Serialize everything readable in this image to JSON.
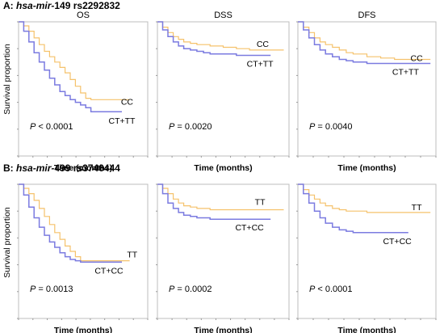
{
  "sections": [
    {
      "letter": "A:",
      "gene": "hsa-mir-",
      "gene_num": "149",
      "snp": "rs2292832"
    },
    {
      "letter": "B:",
      "gene": "hsa-mir-",
      "gene_num": "499",
      "snp": "rs3746444"
    }
  ],
  "y_label": "Survival  proportion",
  "x_label": "Time (months)",
  "colors": {
    "group_ref": "#f5c26b",
    "group_alt": "#7b7be0"
  },
  "chart_data": [
    {
      "type": "line",
      "row": 0,
      "col": 0,
      "title": "OS",
      "p_symbol": "P",
      "p_text": " < 0.0001",
      "xlim": [
        0,
        10
      ],
      "ylim": [
        0,
        1
      ],
      "series": [
        {
          "name": "CC",
          "color": "#f5c26b",
          "x": [
            0,
            0.4,
            0.8,
            1.2,
            1.6,
            2.0,
            2.4,
            2.8,
            3.2,
            3.6,
            4.0,
            4.4,
            4.8,
            5.2,
            5.6,
            6.0,
            7.0,
            8.0,
            8.6
          ],
          "y": [
            1.0,
            0.97,
            0.93,
            0.88,
            0.83,
            0.78,
            0.74,
            0.7,
            0.66,
            0.62,
            0.57,
            0.52,
            0.47,
            0.43,
            0.42,
            0.42,
            0.42,
            0.42,
            0.42
          ]
        },
        {
          "name": "CT+TT",
          "color": "#7b7be0",
          "x": [
            0,
            0.4,
            0.8,
            1.2,
            1.6,
            2.0,
            2.4,
            2.8,
            3.2,
            3.6,
            4.0,
            4.4,
            4.8,
            5.2,
            5.6,
            6.0,
            7.0,
            8.0
          ],
          "y": [
            1.0,
            0.93,
            0.85,
            0.77,
            0.7,
            0.64,
            0.58,
            0.53,
            0.48,
            0.45,
            0.42,
            0.4,
            0.38,
            0.36,
            0.33,
            0.33,
            0.33,
            0.33
          ]
        }
      ]
    },
    {
      "type": "line",
      "row": 0,
      "col": 1,
      "title": "DSS",
      "p_symbol": "P",
      "p_text": " = 0.0020",
      "xlim": [
        0,
        10
      ],
      "ylim": [
        0,
        1
      ],
      "series": [
        {
          "name": "CC",
          "color": "#f5c26b",
          "x": [
            0,
            0.4,
            0.8,
            1.2,
            1.6,
            2.0,
            2.5,
            3.0,
            3.5,
            4.0,
            5.0,
            6.0,
            7.0,
            8.0,
            9.0,
            9.6
          ],
          "y": [
            1.0,
            0.96,
            0.92,
            0.89,
            0.87,
            0.85,
            0.84,
            0.83,
            0.83,
            0.82,
            0.81,
            0.8,
            0.79,
            0.79,
            0.79,
            0.79
          ]
        },
        {
          "name": "CT+TT",
          "color": "#7b7be0",
          "x": [
            0,
            0.4,
            0.8,
            1.2,
            1.6,
            2.0,
            2.5,
            3.0,
            3.5,
            4.0,
            5.0,
            6.0,
            7.0,
            8.0,
            8.6
          ],
          "y": [
            1.0,
            0.94,
            0.89,
            0.85,
            0.82,
            0.8,
            0.79,
            0.78,
            0.77,
            0.76,
            0.76,
            0.75,
            0.75,
            0.75,
            0.75
          ]
        }
      ]
    },
    {
      "type": "line",
      "row": 0,
      "col": 2,
      "title": "DFS",
      "p_symbol": "P",
      "p_text": " = 0.0040",
      "xlim": [
        0,
        10
      ],
      "ylim": [
        0,
        1
      ],
      "series": [
        {
          "name": "CC",
          "color": "#f5c26b",
          "x": [
            0,
            0.4,
            0.8,
            1.2,
            1.6,
            2.0,
            2.5,
            3.0,
            3.5,
            4.0,
            5.0,
            6.0,
            7.0,
            8.0,
            9.0,
            9.6
          ],
          "y": [
            1.0,
            0.96,
            0.92,
            0.88,
            0.85,
            0.83,
            0.81,
            0.79,
            0.77,
            0.76,
            0.74,
            0.73,
            0.72,
            0.72,
            0.72,
            0.72
          ]
        },
        {
          "name": "CT+TT",
          "color": "#7b7be0",
          "x": [
            0,
            0.4,
            0.8,
            1.2,
            1.6,
            2.0,
            2.5,
            3.0,
            3.5,
            4.0,
            5.0,
            6.0,
            7.0,
            8.0,
            9.0,
            9.6
          ],
          "y": [
            1.0,
            0.94,
            0.88,
            0.83,
            0.79,
            0.76,
            0.74,
            0.72,
            0.71,
            0.7,
            0.69,
            0.69,
            0.69,
            0.69,
            0.69,
            0.69
          ]
        }
      ]
    },
    {
      "type": "line",
      "row": 1,
      "col": 0,
      "title": "",
      "p_symbol": "P",
      "p_text": " = 0.0013",
      "xlim": [
        0,
        10
      ],
      "ylim": [
        0,
        1
      ],
      "series": [
        {
          "name": "TT",
          "color": "#f5c26b",
          "x": [
            0,
            0.4,
            0.8,
            1.2,
            1.6,
            2.0,
            2.4,
            2.8,
            3.2,
            3.6,
            4.0,
            4.4,
            4.8,
            5.2,
            6.0,
            7.0,
            8.0,
            8.6
          ],
          "y": [
            1.0,
            0.97,
            0.93,
            0.88,
            0.82,
            0.76,
            0.7,
            0.64,
            0.59,
            0.54,
            0.5,
            0.46,
            0.43,
            0.43,
            0.43,
            0.43,
            0.43,
            0.43
          ]
        },
        {
          "name": "CT+CC",
          "color": "#7b7be0",
          "x": [
            0,
            0.4,
            0.8,
            1.2,
            1.6,
            2.0,
            2.4,
            2.8,
            3.2,
            3.6,
            4.0,
            4.4,
            4.8,
            5.2,
            6.0,
            7.0,
            8.0
          ],
          "y": [
            1.0,
            0.92,
            0.83,
            0.75,
            0.68,
            0.62,
            0.57,
            0.53,
            0.49,
            0.46,
            0.44,
            0.43,
            0.42,
            0.42,
            0.42,
            0.42,
            0.42
          ]
        }
      ]
    },
    {
      "type": "line",
      "row": 1,
      "col": 1,
      "title": "",
      "p_symbol": "P",
      "p_text": " = 0.0002",
      "xlim": [
        0,
        10
      ],
      "ylim": [
        0,
        1
      ],
      "series": [
        {
          "name": "TT",
          "color": "#f5c26b",
          "x": [
            0,
            0.4,
            0.8,
            1.2,
            1.6,
            2.0,
            2.5,
            3.0,
            3.5,
            4.0,
            5.0,
            6.0,
            7.0,
            8.0,
            9.0,
            9.6
          ],
          "y": [
            1.0,
            0.97,
            0.93,
            0.89,
            0.86,
            0.84,
            0.83,
            0.82,
            0.82,
            0.81,
            0.81,
            0.81,
            0.81,
            0.81,
            0.81,
            0.81
          ]
        },
        {
          "name": "CT+CC",
          "color": "#7b7be0",
          "x": [
            0,
            0.4,
            0.8,
            1.2,
            1.6,
            2.0,
            2.5,
            3.0,
            3.5,
            4.0,
            5.0,
            6.0,
            7.0,
            8.0,
            8.6
          ],
          "y": [
            1.0,
            0.93,
            0.86,
            0.82,
            0.79,
            0.77,
            0.76,
            0.75,
            0.75,
            0.74,
            0.74,
            0.74,
            0.74,
            0.74,
            0.74
          ]
        }
      ]
    },
    {
      "type": "line",
      "row": 1,
      "col": 2,
      "title": "",
      "p_symbol": "P",
      "p_text": " < 0.0001",
      "xlim": [
        0,
        10
      ],
      "ylim": [
        0,
        1
      ],
      "series": [
        {
          "name": "TT",
          "color": "#f5c26b",
          "x": [
            0,
            0.4,
            0.8,
            1.2,
            1.6,
            2.0,
            2.5,
            3.0,
            3.5,
            4.0,
            5.0,
            6.0,
            7.0,
            8.0,
            9.0,
            9.6
          ],
          "y": [
            1.0,
            0.96,
            0.92,
            0.89,
            0.86,
            0.84,
            0.82,
            0.81,
            0.8,
            0.8,
            0.79,
            0.79,
            0.79,
            0.79,
            0.79,
            0.79
          ]
        },
        {
          "name": "CT+CC",
          "color": "#7b7be0",
          "x": [
            0,
            0.4,
            0.8,
            1.2,
            1.6,
            2.0,
            2.5,
            3.0,
            3.5,
            4.0,
            5.0,
            6.0,
            7.0,
            8.0
          ],
          "y": [
            1.0,
            0.93,
            0.86,
            0.8,
            0.75,
            0.71,
            0.68,
            0.66,
            0.65,
            0.64,
            0.64,
            0.64,
            0.64,
            0.64
          ]
        }
      ]
    }
  ]
}
